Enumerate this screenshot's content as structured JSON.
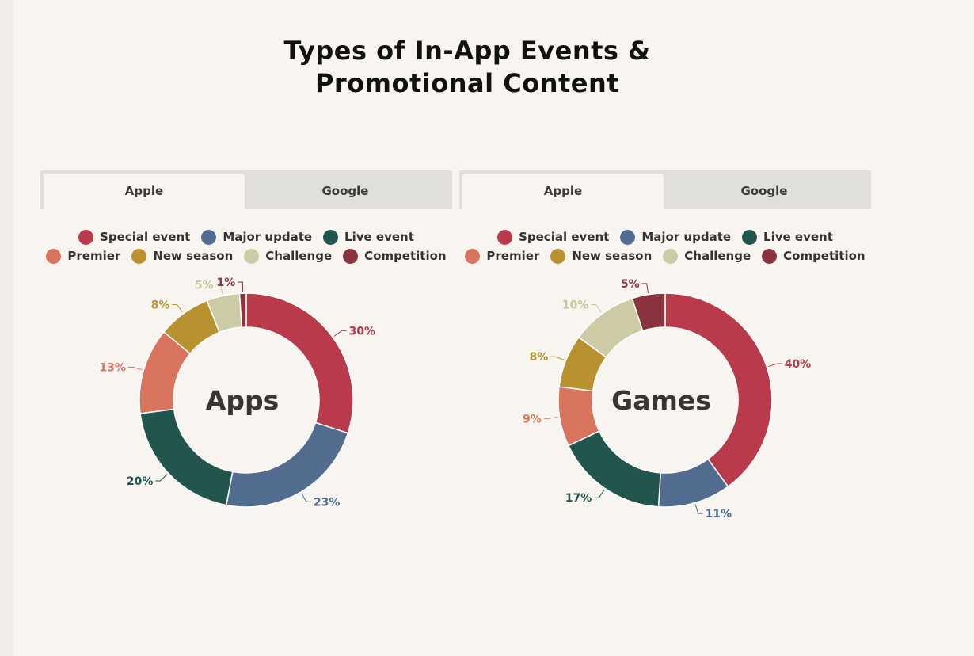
{
  "title_line1": "Types of In-App Events &",
  "title_line2": "Promotional Content",
  "legend": [
    {
      "label": "Special event",
      "color": "#b83a4b"
    },
    {
      "label": "Major update",
      "color": "#526c8f"
    },
    {
      "label": "Live event",
      "color": "#21554d"
    },
    {
      "label": "Premier",
      "color": "#d8735e"
    },
    {
      "label": "New season",
      "color": "#b89130"
    },
    {
      "label": "Challenge",
      "color": "#cdcba6"
    },
    {
      "label": "Competition",
      "color": "#8a343f"
    }
  ],
  "panels": [
    {
      "tabs": [
        "Apple",
        "Google"
      ],
      "active_tab": "Apple"
    },
    {
      "tabs": [
        "Apple",
        "Google"
      ],
      "active_tab": "Apple"
    }
  ],
  "chart_data": [
    {
      "type": "pie",
      "center_label": "Apps",
      "categories": [
        "Special event",
        "Major update",
        "Live event",
        "Premier",
        "New season",
        "Challenge",
        "Competition"
      ],
      "values": [
        30,
        23,
        20,
        13,
        8,
        5,
        1
      ],
      "value_labels": [
        "30%",
        "23%",
        "20%",
        "13%",
        "8%",
        "5%",
        "1%"
      ],
      "colors": [
        "#b83a4b",
        "#526c8f",
        "#21554d",
        "#d8735e",
        "#b89130",
        "#cdcba6",
        "#8a343f"
      ],
      "label_colors": [
        "#b83a4b",
        "#526c8f",
        "#21554d",
        "#d8735e",
        "#b89130",
        "#c9c49c",
        "#8a343f"
      ]
    },
    {
      "type": "pie",
      "center_label": "Games",
      "categories": [
        "Special event",
        "Major update",
        "Live event",
        "Premier",
        "New season",
        "Challenge",
        "Competition"
      ],
      "values": [
        40,
        11,
        17,
        9,
        8,
        10,
        5
      ],
      "value_labels": [
        "40%",
        "11%",
        "17%",
        "9%",
        "8%",
        "10%",
        "5%"
      ],
      "colors": [
        "#b83a4b",
        "#526c8f",
        "#21554d",
        "#d8735e",
        "#b89130",
        "#cdcba6",
        "#8a343f"
      ],
      "label_colors": [
        "#b83a4b",
        "#526c8f",
        "#21554d",
        "#d8735e",
        "#b89130",
        "#c9c49c",
        "#8a343f"
      ]
    }
  ]
}
